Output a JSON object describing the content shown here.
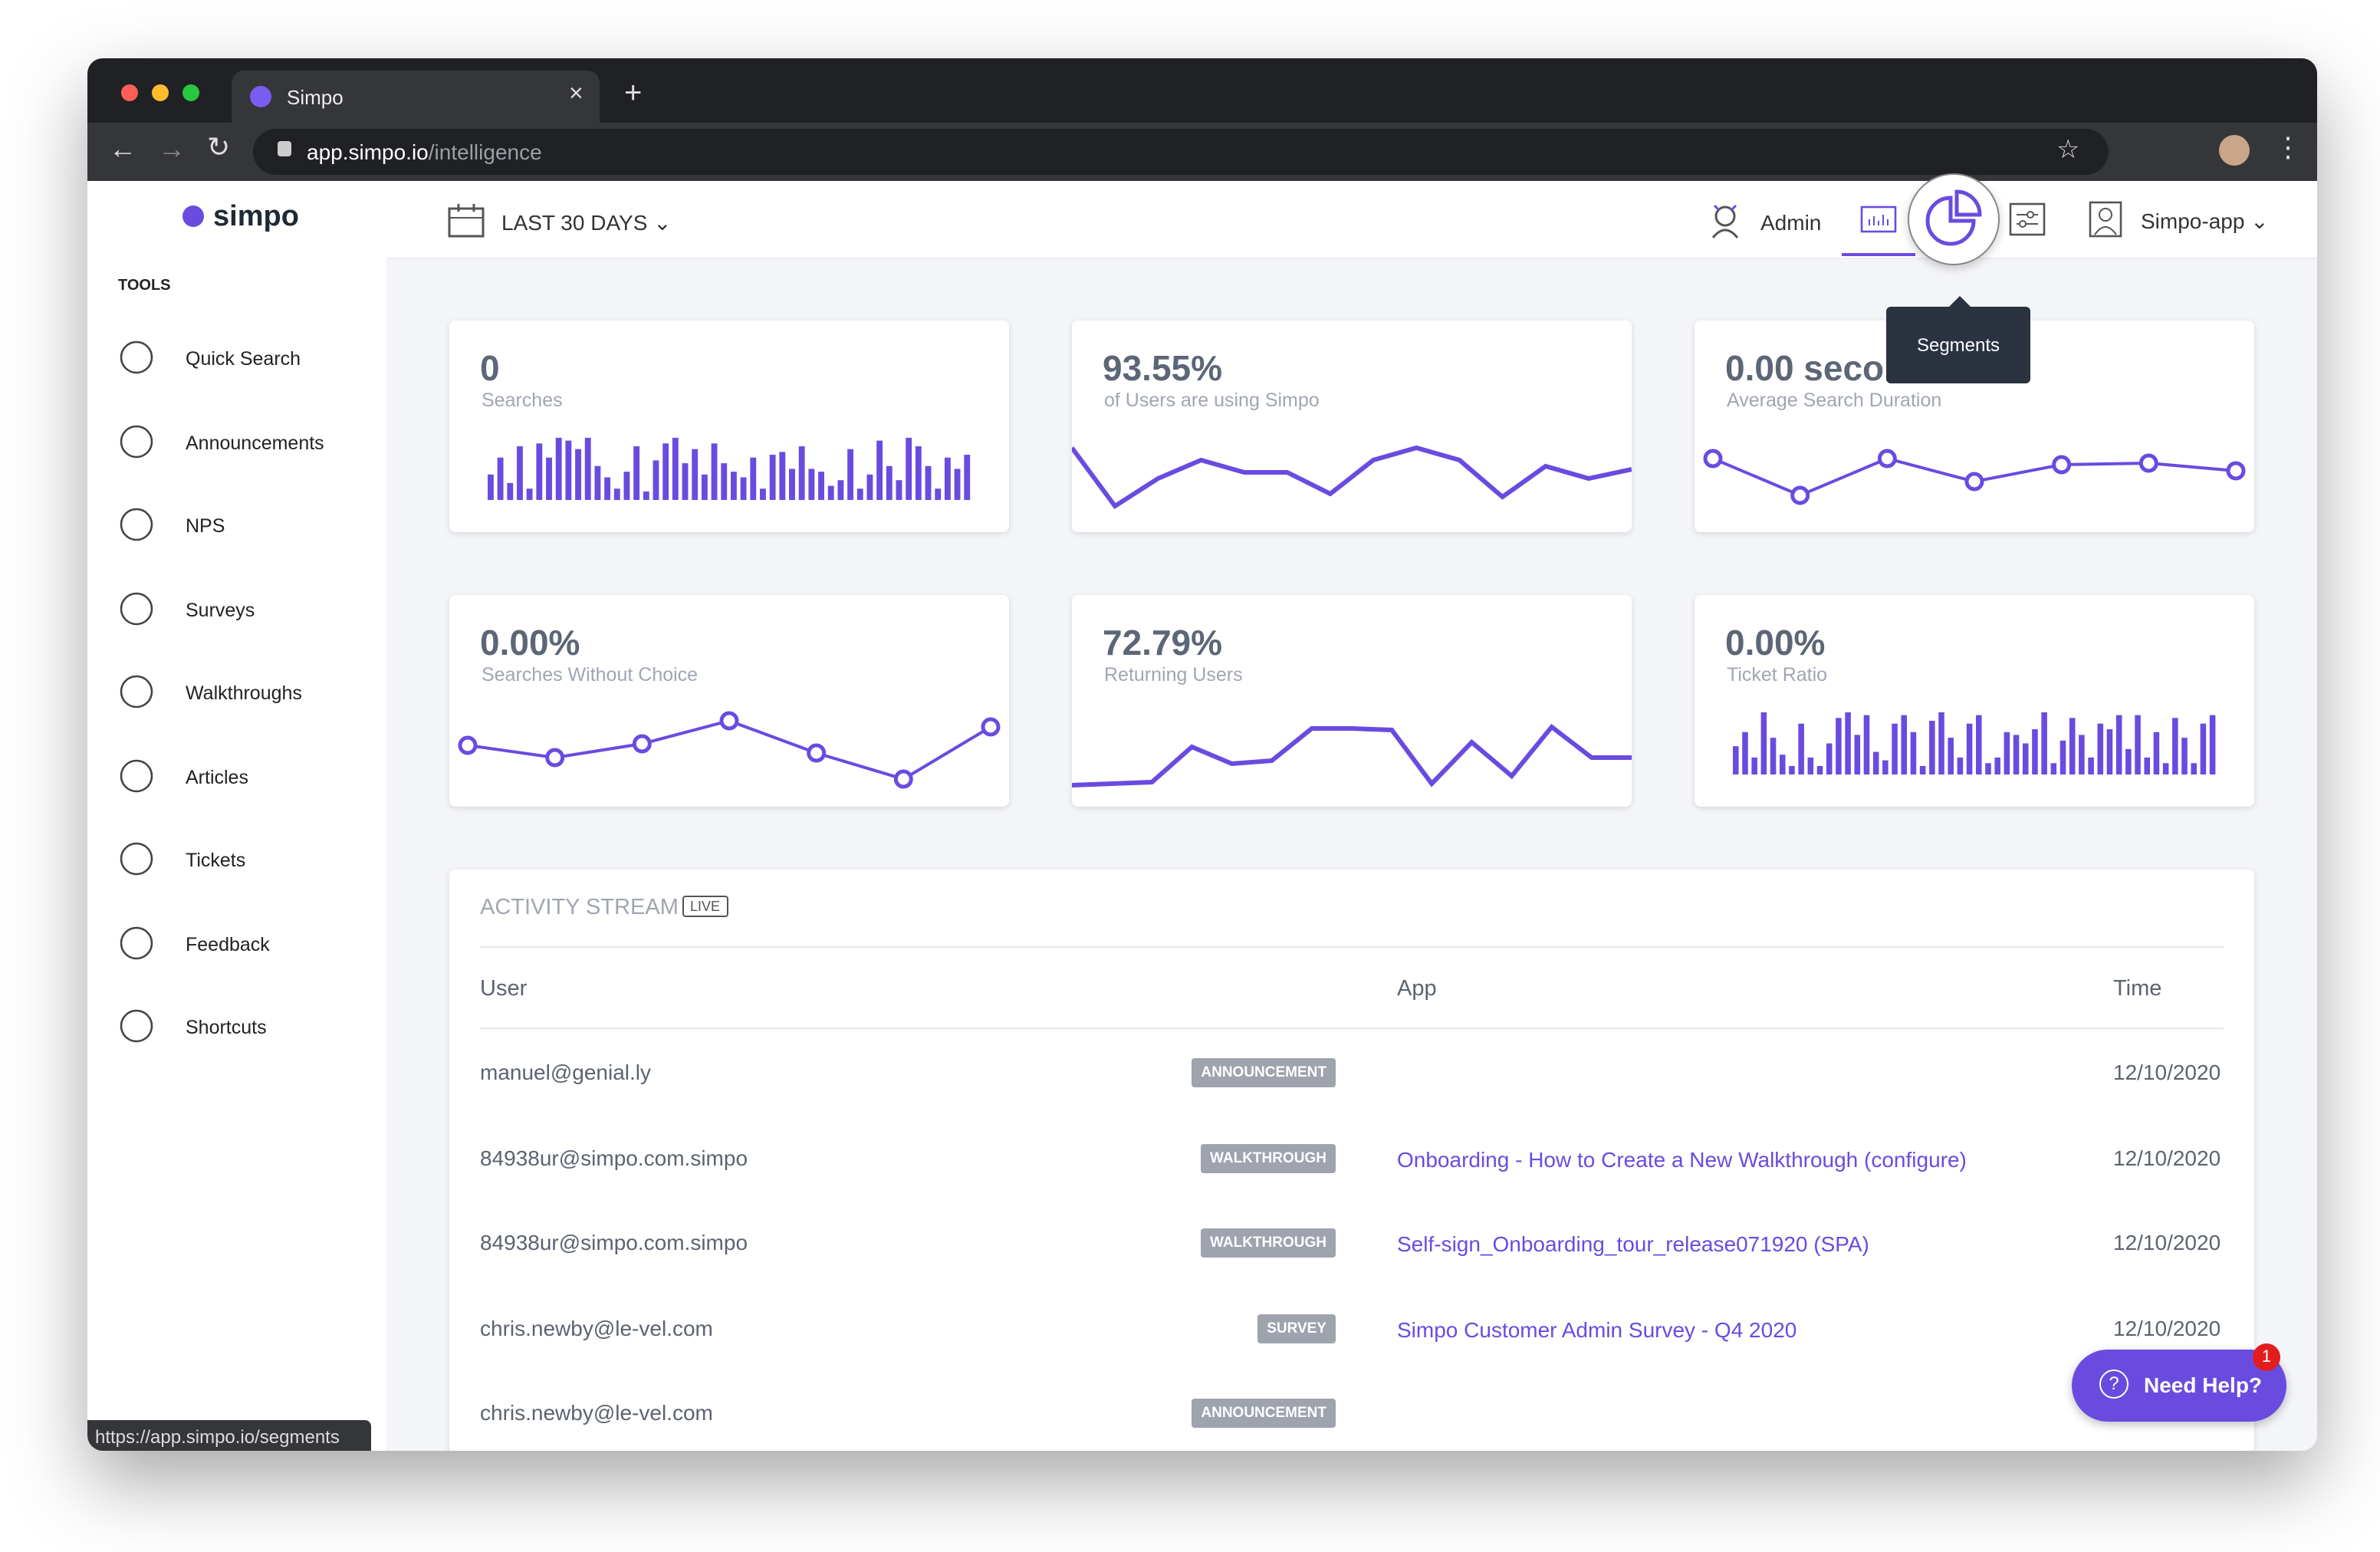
{
  "browser": {
    "tab_title": "Simpo",
    "url_host": "app.simpo.io",
    "url_path": "/intelligence",
    "status_url": "https://app.simpo.io/segments"
  },
  "sidebar": {
    "brand": "simpo",
    "section": "TOOLS",
    "items": [
      "Quick Search",
      "Announcements",
      "NPS",
      "Surveys",
      "Walkthroughs",
      "Articles",
      "Tickets",
      "Feedback",
      "Shortcuts"
    ]
  },
  "header": {
    "date_range": "LAST 30 DAYS",
    "admin": "Admin",
    "tooltip": "Segments",
    "account": "Simpo-app"
  },
  "cards": [
    {
      "value": "0",
      "label": "Searches",
      "type": "bar",
      "ylim": [
        0,
        50
      ],
      "points": [
        18,
        30,
        12,
        38,
        8,
        40,
        30,
        44,
        42,
        36,
        44,
        24,
        16,
        8,
        20,
        38,
        6,
        28,
        40,
        44,
        26,
        36,
        18,
        40,
        26,
        20,
        16,
        30,
        8,
        32,
        34,
        22,
        38,
        22,
        20,
        10,
        14,
        36,
        8,
        18,
        42,
        24,
        14,
        44,
        38,
        24,
        8,
        30,
        22,
        32
      ]
    },
    {
      "value": "93.55%",
      "label": "of Users are using Simpo",
      "type": "line",
      "ylim": [
        0,
        50
      ],
      "points": [
        43,
        5,
        23,
        35,
        27,
        27,
        13,
        35,
        43,
        35,
        11,
        31,
        23,
        29
      ]
    },
    {
      "value": "0.00 seco",
      "label": "Average Search Duration",
      "type": "dots",
      "ylim": [
        0,
        50
      ],
      "points": [
        36,
        12,
        36,
        21,
        32,
        33,
        28
      ]
    },
    {
      "value": "0.00%",
      "label": "Searches Without Choice",
      "type": "dots",
      "ylim": [
        0,
        50
      ],
      "points": [
        28,
        20,
        29,
        44,
        23,
        6,
        40
      ]
    },
    {
      "value": "72.79%",
      "label": "Returning Users",
      "type": "line",
      "ylim": [
        0,
        50
      ],
      "points": [
        2,
        3,
        4,
        27,
        16,
        18,
        39,
        39,
        38,
        3,
        30,
        8,
        40,
        20,
        20
      ]
    },
    {
      "value": "0.00%",
      "label": "Ticket Ratio",
      "type": "bar",
      "ylim": [
        0,
        50
      ],
      "points": [
        20,
        30,
        12,
        44,
        26,
        14,
        6,
        36,
        12,
        6,
        22,
        40,
        44,
        28,
        42,
        16,
        10,
        36,
        42,
        30,
        6,
        38,
        44,
        26,
        12,
        36,
        42,
        8,
        12,
        30,
        28,
        22,
        32,
        44,
        8,
        24,
        40,
        28,
        12,
        36,
        32,
        42,
        18,
        42,
        12,
        30,
        8,
        40,
        26,
        8,
        36,
        42
      ]
    }
  ],
  "activity": {
    "title": "ACTIVITY STREAM",
    "live": "LIVE",
    "columns": [
      "User",
      "App",
      "Time"
    ],
    "rows": [
      {
        "user": "manuel@genial.ly",
        "tag": "ANNOUNCEMENT",
        "time": "12/10/2020"
      },
      {
        "user": "84938ur@simpo.com.simpo",
        "tag": "WALKTHROUGH",
        "app": "Onboarding - How to Create a New Walkthrough (configure)",
        "time": "12/10/2020"
      },
      {
        "user": "84938ur@simpo.com.simpo",
        "tag": "WALKTHROUGH",
        "app": "Self-sign_Onboarding_tour_release071920 (SPA)",
        "time": "12/10/2020"
      },
      {
        "user": "chris.newby@le-vel.com",
        "tag": "SURVEY",
        "app": "Simpo Customer Admin Survey - Q4 2020",
        "time": "12/10/2020"
      },
      {
        "user": "chris.newby@le-vel.com",
        "tag": "ANNOUNCEMENT"
      }
    ]
  },
  "help": {
    "label": "Need Help?",
    "badge": "1"
  }
}
